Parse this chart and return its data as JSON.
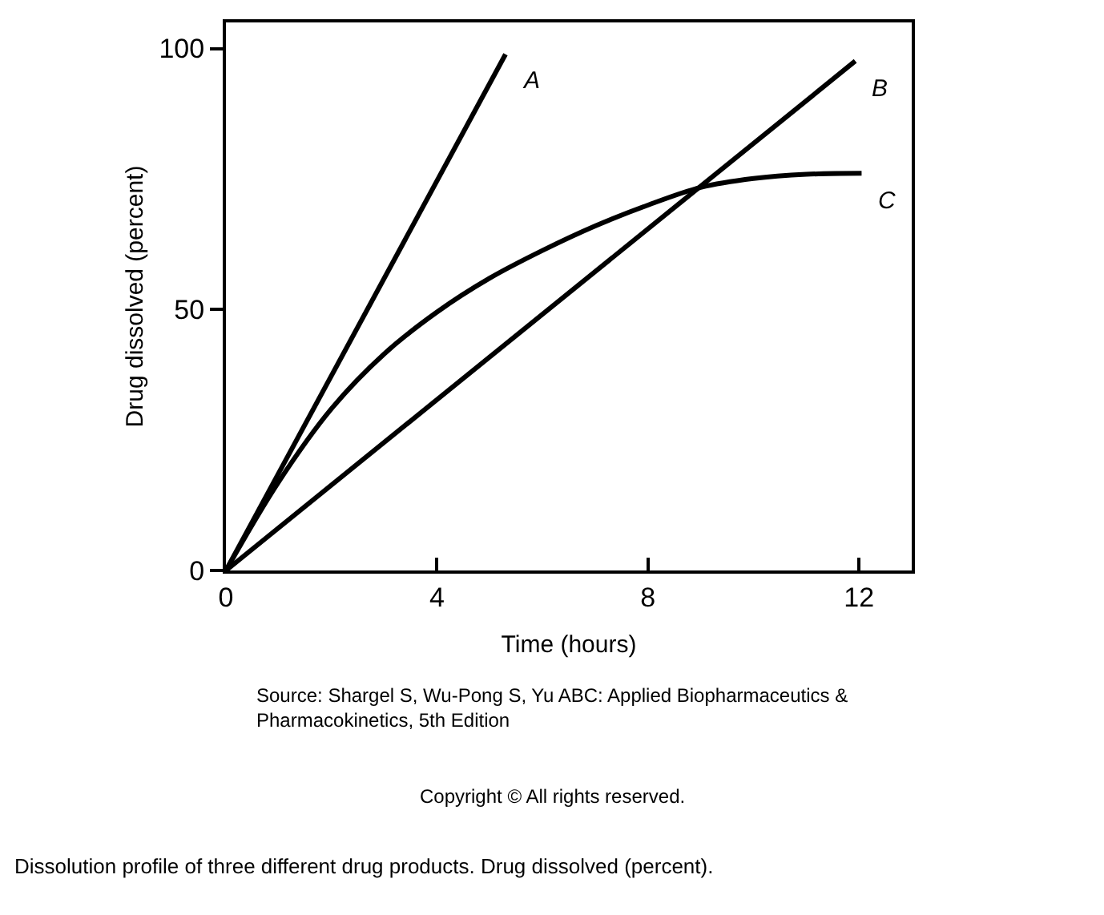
{
  "chart_data": {
    "type": "line",
    "xlabel": "Time (hours)",
    "ylabel": "Drug dissolved (percent)",
    "xlim": [
      0,
      13
    ],
    "ylim": [
      0,
      105
    ],
    "xticks": [
      0,
      4,
      8,
      12
    ],
    "yticks": [
      0,
      50,
      100
    ],
    "legend": false,
    "marker": "none",
    "line_style": "solid",
    "series": [
      {
        "name": "A",
        "color": "#000000",
        "x": [
          0,
          5.3
        ],
        "values": [
          0,
          98.9
        ]
      },
      {
        "name": "B",
        "color": "#000000",
        "x": [
          0,
          11.93
        ],
        "values": [
          0,
          97.6
        ]
      },
      {
        "name": "C",
        "color": "#000000",
        "x": [
          0,
          1,
          2,
          3,
          4,
          5,
          6,
          7,
          8,
          9,
          10,
          11,
          12.05
        ],
        "values": [
          0,
          17,
          31,
          41.5,
          49.5,
          56,
          61.3,
          66,
          70,
          73.4,
          75.1,
          75.9,
          76.1
        ]
      }
    ],
    "annotations": [
      "Source: Shargel S, Wu-Pong S, Yu ABC: Applied Biopharmaceutics & Pharmacokinetics, 5th Edition",
      "Copyright © All rights reserved.",
      "Dissolution profile of three different drug products. Drug dissolved (percent)."
    ]
  }
}
